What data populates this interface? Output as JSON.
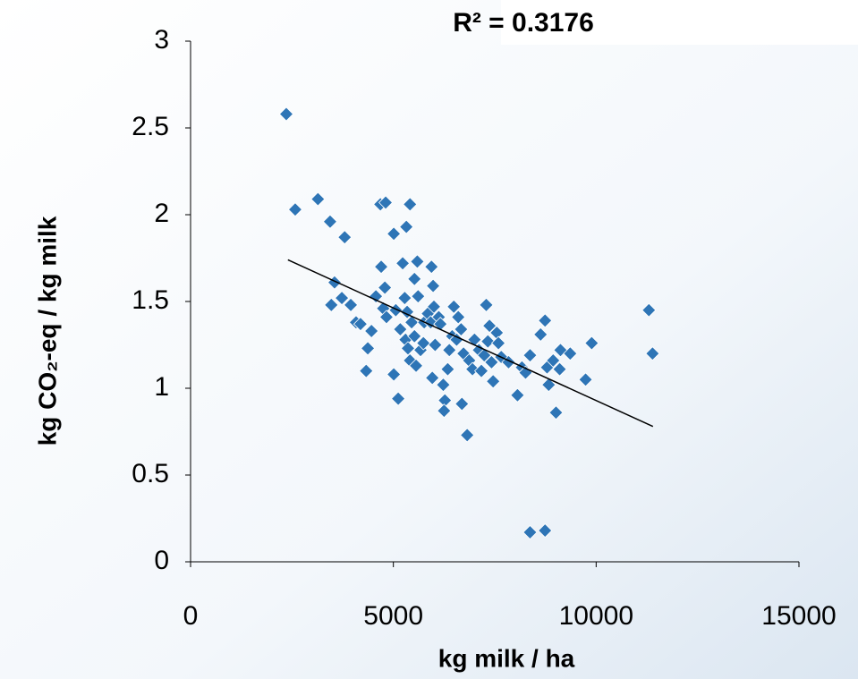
{
  "chart_data": {
    "type": "scatter",
    "annotation": "R² = 0.3176",
    "x_label": "kg milk / ha",
    "y_label": "kg CO₂-eq / kg milk",
    "xlim": [
      0,
      15000
    ],
    "xticks": [
      0,
      5000,
      10000,
      15000
    ],
    "ylim": [
      0,
      3
    ],
    "yticks": [
      0,
      0.5,
      1,
      1.5,
      2,
      2.5,
      3
    ],
    "series": [
      {
        "color": "#2e75b6",
        "x": [
          2360,
          2580,
          3140,
          3440,
          3800,
          3550,
          3470,
          3730,
          3950,
          4080,
          4190,
          4370,
          4330,
          4460,
          4570,
          4680,
          4810,
          4700,
          4790,
          4750,
          4830,
          5010,
          5060,
          5010,
          5120,
          5170,
          5230,
          5320,
          5410,
          5280,
          5340,
          5300,
          5360,
          5410,
          5450,
          5520,
          5590,
          5610,
          5520,
          5560,
          5670,
          5740,
          5760,
          5850,
          5920,
          6000,
          5940,
          5980,
          6030,
          5960,
          6120,
          6160,
          6230,
          6270,
          6250,
          6340,
          6380,
          6450,
          6490,
          6560,
          6600,
          6670,
          6690,
          6730,
          6820,
          6870,
          6950,
          7000,
          7110,
          7170,
          7240,
          7290,
          7330,
          7370,
          7420,
          7460,
          7550,
          7590,
          7660,
          7840,
          8060,
          8170,
          8260,
          8370,
          8370,
          8740,
          8630,
          8740,
          8790,
          8830,
          8940,
          9010,
          9100,
          9120,
          9360,
          9740,
          9890,
          11300,
          11390
        ],
        "values": [
          2.58,
          2.03,
          2.09,
          1.96,
          1.87,
          1.61,
          1.48,
          1.52,
          1.48,
          1.38,
          1.37,
          1.23,
          1.1,
          1.33,
          1.53,
          2.06,
          2.07,
          1.7,
          1.58,
          1.46,
          1.41,
          1.89,
          1.45,
          1.08,
          0.94,
          1.34,
          1.72,
          1.93,
          2.06,
          1.52,
          1.44,
          1.28,
          1.23,
          1.16,
          1.38,
          1.63,
          1.73,
          1.53,
          1.3,
          1.13,
          1.22,
          1.26,
          1.38,
          1.43,
          1.38,
          1.47,
          1.7,
          1.59,
          1.25,
          1.06,
          1.41,
          1.37,
          1.02,
          0.93,
          0.87,
          1.11,
          1.22,
          1.3,
          1.47,
          1.28,
          1.41,
          1.34,
          0.91,
          1.2,
          0.73,
          1.16,
          1.11,
          1.28,
          1.22,
          1.1,
          1.19,
          1.48,
          1.27,
          1.36,
          1.15,
          1.04,
          1.32,
          1.26,
          1.18,
          1.15,
          0.96,
          1.12,
          1.09,
          1.19,
          0.17,
          0.18,
          1.31,
          1.39,
          1.12,
          1.02,
          1.16,
          0.86,
          1.11,
          1.22,
          1.2,
          1.05,
          1.26,
          1.45,
          1.2
        ]
      }
    ],
    "trendline": {
      "color": "#000000",
      "x": [
        2400,
        11400
      ],
      "y": [
        1.74,
        0.78
      ]
    }
  }
}
